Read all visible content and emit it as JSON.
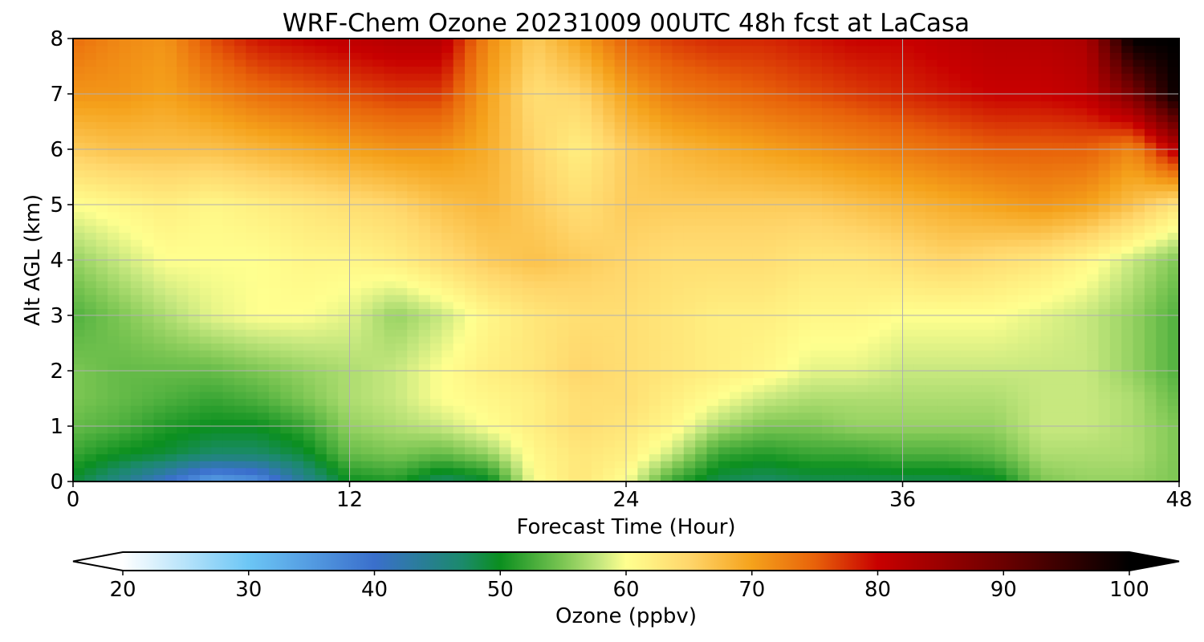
{
  "chart_data": {
    "type": "heatmap",
    "title": "WRF-Chem Ozone  20231009 00UTC 48h fcst at LaCasa",
    "xlabel": "Forecast Time (Hour)",
    "ylabel": "Alt AGL (km)",
    "xlim": [
      0,
      48
    ],
    "ylim": [
      0,
      8
    ],
    "x_ticks": [
      0,
      12,
      24,
      36,
      48
    ],
    "y_ticks": [
      0,
      1,
      2,
      3,
      4,
      5,
      6,
      7,
      8
    ],
    "grid": true,
    "colorbar": {
      "label": "Ozone  (ppbv)",
      "min": 20,
      "max": 100,
      "ticks": [
        20,
        30,
        40,
        50,
        60,
        70,
        80,
        90,
        100
      ],
      "extend": "both",
      "colors": {
        "20": "#ffffff",
        "30": "#6cc6f5",
        "40": "#3a6fcc",
        "47": "#1b8a6b",
        "50": "#0b8f1f",
        "55": "#7cc653",
        "58": "#c7e87f",
        "60": "#ffff8f",
        "65": "#ffd66b",
        "70": "#f5a21b",
        "75": "#e8620a",
        "80": "#c80000",
        "90": "#6b0000",
        "100": "#000000"
      }
    },
    "heatmap": {
      "hours": [
        0,
        2,
        4,
        6,
        8,
        10,
        12,
        14,
        16,
        18,
        20,
        22,
        24,
        26,
        28,
        30,
        32,
        34,
        36,
        38,
        40,
        42,
        44,
        46,
        48
      ],
      "altitudes_km": [
        0,
        0.5,
        1,
        1.5,
        2,
        3,
        4,
        5,
        6,
        7,
        8
      ],
      "ozone_ppbv": [
        [
          49,
          45,
          40,
          34,
          36,
          44,
          50,
          51,
          47,
          49,
          60,
          63,
          60,
          52,
          48,
          47,
          48,
          48,
          48,
          48,
          49,
          55,
          56,
          56,
          55
        ],
        [
          52,
          50,
          49,
          47,
          47,
          49,
          54,
          55,
          54,
          56,
          61,
          63,
          62,
          58,
          52,
          51,
          52,
          52,
          53,
          53,
          54,
          57,
          57,
          57,
          55
        ],
        [
          54,
          53,
          51,
          50,
          50,
          52,
          56,
          57,
          58,
          60,
          62,
          64,
          63,
          61,
          57,
          55,
          55,
          56,
          56,
          56,
          56,
          58,
          58,
          57,
          55
        ],
        [
          55,
          54,
          53,
          52,
          53,
          55,
          57,
          58,
          60,
          61,
          62,
          64,
          64,
          62,
          60,
          58,
          57,
          57,
          57,
          57,
          57,
          58,
          58,
          57,
          54
        ],
        [
          55,
          54,
          54,
          54,
          55,
          56,
          57,
          58,
          60,
          62,
          63,
          65,
          64,
          63,
          62,
          61,
          59,
          59,
          58,
          58,
          58,
          58,
          58,
          56,
          53
        ],
        [
          53,
          55,
          57,
          59,
          60,
          60,
          59,
          56,
          58,
          61,
          63,
          64,
          64,
          63,
          62,
          62,
          61,
          61,
          60,
          60,
          60,
          59,
          58,
          56,
          53
        ],
        [
          56,
          58,
          60,
          60,
          60,
          61,
          61,
          62,
          64,
          66,
          67,
          66,
          65,
          64,
          64,
          64,
          63,
          63,
          64,
          65,
          64,
          63,
          61,
          58,
          55
        ],
        [
          60,
          61,
          62,
          61,
          62,
          63,
          64,
          65,
          67,
          68,
          66,
          64,
          66,
          66,
          66,
          66,
          66,
          67,
          68,
          69,
          70,
          71,
          70,
          67,
          63
        ],
        [
          66,
          67,
          67,
          67,
          68,
          69,
          70,
          71,
          71,
          69,
          65,
          62,
          66,
          68,
          69,
          70,
          71,
          72,
          73,
          74,
          75,
          75,
          75,
          72,
          82
        ],
        [
          71,
          71,
          70,
          72,
          74,
          75,
          76,
          77,
          77,
          70,
          64,
          65,
          70,
          73,
          74,
          75,
          76,
          77,
          78,
          79,
          80,
          80,
          81,
          88,
          100
        ],
        [
          74,
          72,
          71,
          76,
          79,
          80,
          81,
          82,
          82,
          72,
          66,
          70,
          75,
          77,
          78,
          78,
          79,
          80,
          80,
          81,
          82,
          82,
          83,
          100,
          100
        ]
      ]
    }
  }
}
